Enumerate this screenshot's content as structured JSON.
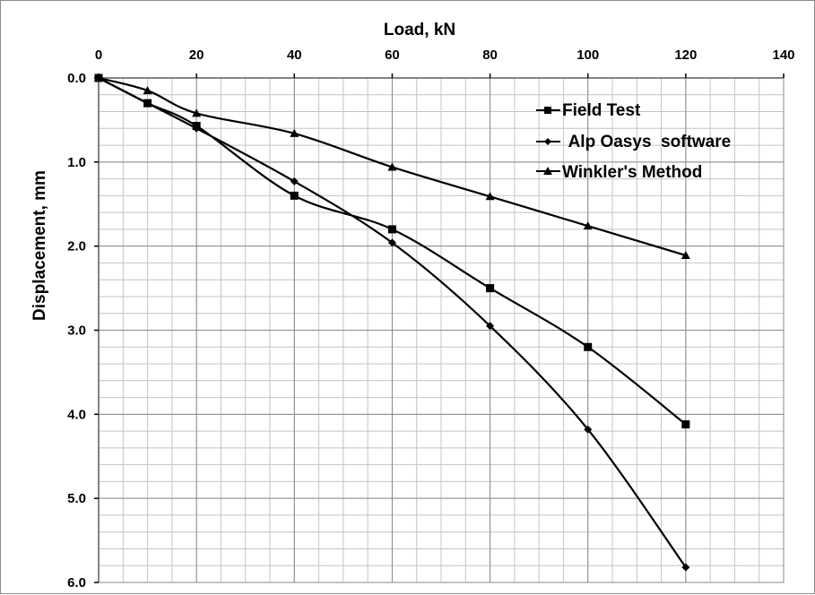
{
  "chart_data": {
    "type": "line",
    "title": "",
    "xlabel": "Load, kN",
    "ylabel": "Displacement, mm",
    "x_axis_position": "top",
    "y_axis_inverted": true,
    "xlim": [
      0,
      140
    ],
    "ylim": [
      0,
      6
    ],
    "x_ticks": [
      0,
      20,
      40,
      60,
      80,
      100,
      120,
      140
    ],
    "y_ticks": [
      "0.0",
      "1.0",
      "2.0",
      "3.0",
      "4.0",
      "5.0",
      "6.0"
    ],
    "grid": true,
    "legend_position": "top-right",
    "series": [
      {
        "name": "Field Test",
        "marker": "square",
        "color": "#000000",
        "x": [
          0,
          10,
          20,
          40,
          60,
          80,
          100,
          120
        ],
        "y": [
          0.0,
          0.3,
          0.57,
          1.4,
          1.8,
          2.5,
          3.2,
          4.12
        ]
      },
      {
        "name": " Alp Oasys  software",
        "marker": "diamond",
        "color": "#000000",
        "x": [
          0,
          10,
          20,
          40,
          60,
          80,
          100,
          120
        ],
        "y": [
          0.0,
          0.3,
          0.6,
          1.23,
          1.96,
          2.95,
          4.18,
          5.82
        ]
      },
      {
        "name": "Winkler's Method",
        "marker": "triangle",
        "color": "#000000",
        "x": [
          0,
          10,
          20,
          40,
          60,
          80,
          100,
          120
        ],
        "y": [
          0.0,
          0.15,
          0.42,
          0.66,
          1.06,
          1.41,
          1.76,
          2.11
        ]
      }
    ]
  }
}
